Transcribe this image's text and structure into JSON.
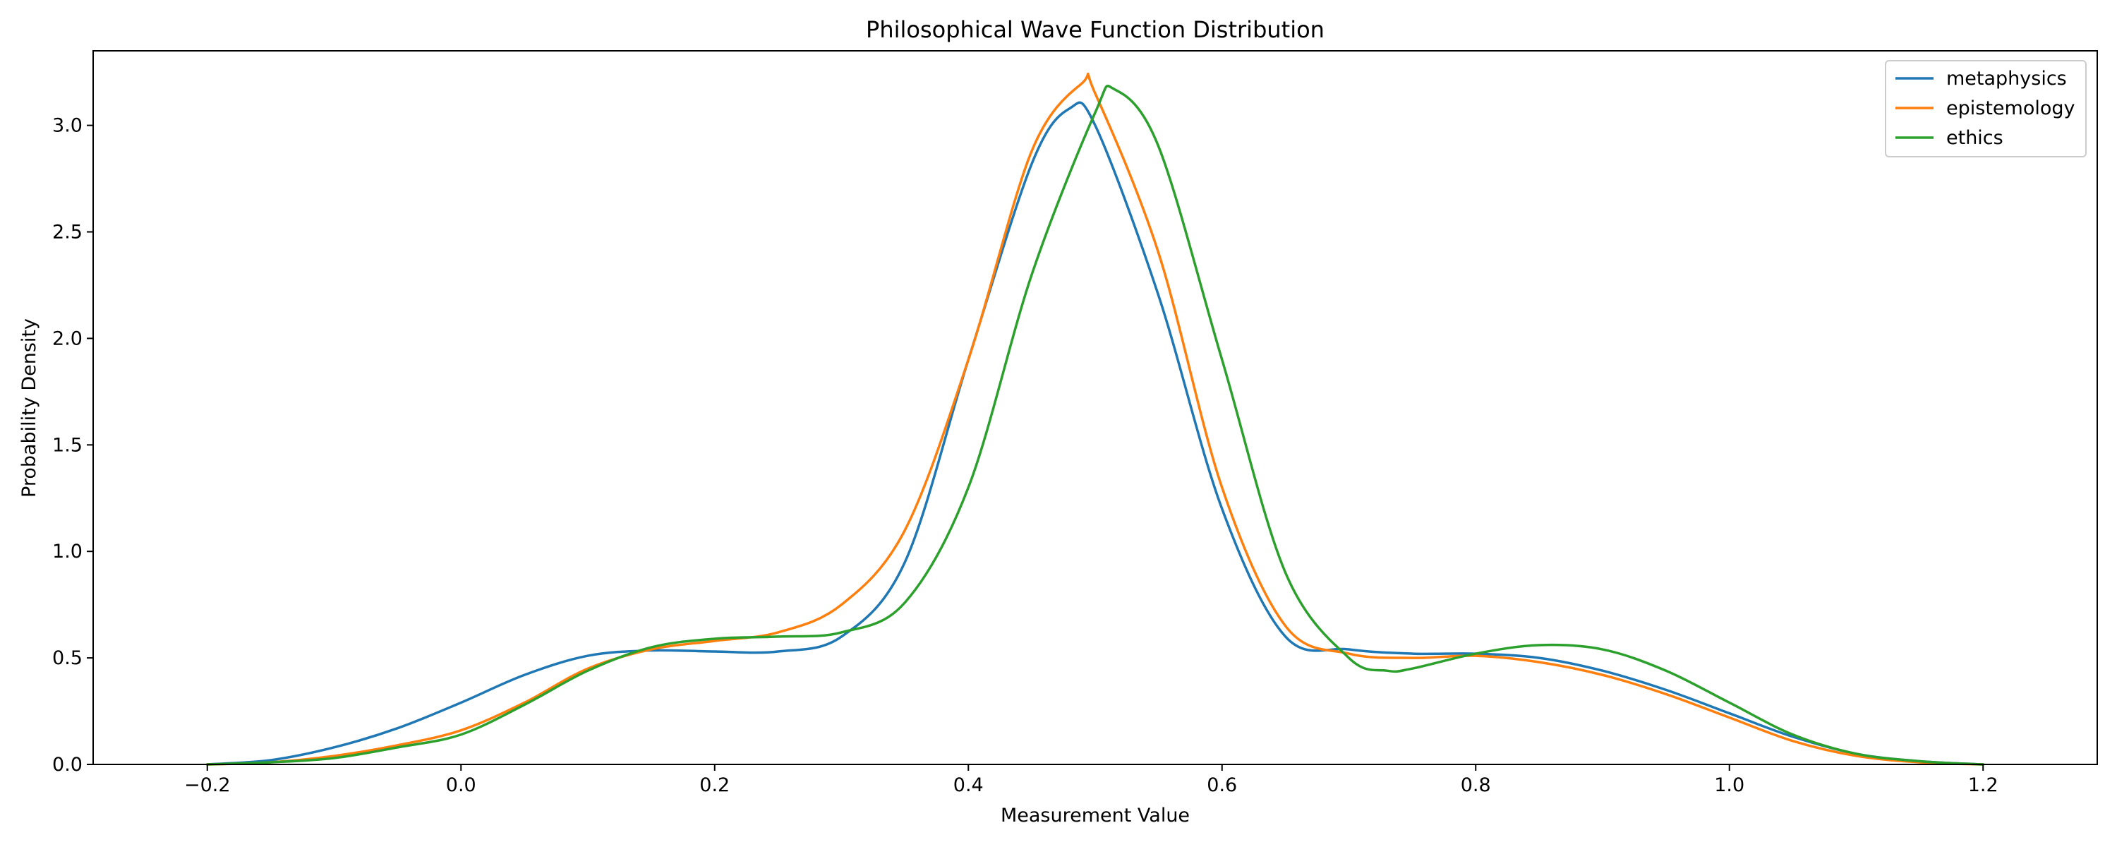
{
  "chart_data": {
    "type": "line",
    "title": "Philosophical Wave Function Distribution",
    "xlabel": "Measurement Value",
    "ylabel": "Probability Density",
    "xlim": [
      -0.29,
      1.29
    ],
    "ylim": [
      0,
      3.35
    ],
    "xticks": [
      -0.2,
      0.0,
      0.2,
      0.4,
      0.6,
      0.8,
      1.0,
      1.2
    ],
    "xtick_labels": [
      "−0.2",
      "0.0",
      "0.2",
      "0.4",
      "0.6",
      "0.8",
      "1.0",
      "1.2"
    ],
    "yticks": [
      0.0,
      0.5,
      1.0,
      1.5,
      2.0,
      2.5,
      3.0
    ],
    "ytick_labels": [
      "0.0",
      "0.5",
      "1.0",
      "1.5",
      "2.0",
      "2.5",
      "3.0"
    ],
    "grid": false,
    "legend_position": "top-right",
    "series": [
      {
        "name": "metaphysics",
        "color": "#1f77b4",
        "x": [
          -0.2,
          -0.15,
          -0.1,
          -0.05,
          0.0,
          0.05,
          0.1,
          0.15,
          0.2,
          0.25,
          0.3,
          0.35,
          0.4,
          0.45,
          0.48,
          0.5,
          0.55,
          0.6,
          0.65,
          0.7,
          0.75,
          0.8,
          0.85,
          0.9,
          0.95,
          1.0,
          1.05,
          1.1,
          1.15,
          1.2
        ],
        "y": [
          0.0,
          0.02,
          0.08,
          0.17,
          0.29,
          0.42,
          0.51,
          0.535,
          0.53,
          0.53,
          0.6,
          0.95,
          1.9,
          2.82,
          3.08,
          3.0,
          2.2,
          1.2,
          0.6,
          0.54,
          0.52,
          0.52,
          0.5,
          0.44,
          0.35,
          0.24,
          0.13,
          0.05,
          0.015,
          0.0
        ]
      },
      {
        "name": "epistemology",
        "color": "#ff7f0e",
        "x": [
          -0.2,
          -0.15,
          -0.1,
          -0.05,
          0.0,
          0.05,
          0.1,
          0.15,
          0.2,
          0.25,
          0.3,
          0.35,
          0.4,
          0.45,
          0.49,
          0.5,
          0.55,
          0.6,
          0.65,
          0.7,
          0.75,
          0.8,
          0.85,
          0.9,
          0.95,
          1.0,
          1.05,
          1.1,
          1.15,
          1.2
        ],
        "y": [
          0.0,
          0.01,
          0.04,
          0.09,
          0.16,
          0.29,
          0.45,
          0.54,
          0.58,
          0.62,
          0.75,
          1.1,
          1.9,
          2.88,
          3.2,
          3.15,
          2.4,
          1.3,
          0.65,
          0.52,
          0.5,
          0.51,
          0.48,
          0.42,
          0.33,
          0.22,
          0.11,
          0.04,
          0.01,
          0.0
        ]
      },
      {
        "name": "ethics",
        "color": "#2ca02c",
        "x": [
          -0.2,
          -0.15,
          -0.1,
          -0.05,
          0.0,
          0.05,
          0.1,
          0.15,
          0.2,
          0.25,
          0.3,
          0.35,
          0.4,
          0.45,
          0.5,
          0.515,
          0.55,
          0.6,
          0.65,
          0.7,
          0.73,
          0.75,
          0.8,
          0.85,
          0.9,
          0.95,
          1.0,
          1.05,
          1.1,
          1.15,
          1.2
        ],
        "y": [
          0.0,
          0.01,
          0.03,
          0.08,
          0.14,
          0.28,
          0.44,
          0.55,
          0.59,
          0.6,
          0.62,
          0.76,
          1.3,
          2.3,
          3.06,
          3.17,
          2.9,
          1.9,
          0.9,
          0.5,
          0.44,
          0.45,
          0.52,
          0.56,
          0.54,
          0.44,
          0.29,
          0.14,
          0.05,
          0.015,
          0.0
        ]
      }
    ]
  }
}
